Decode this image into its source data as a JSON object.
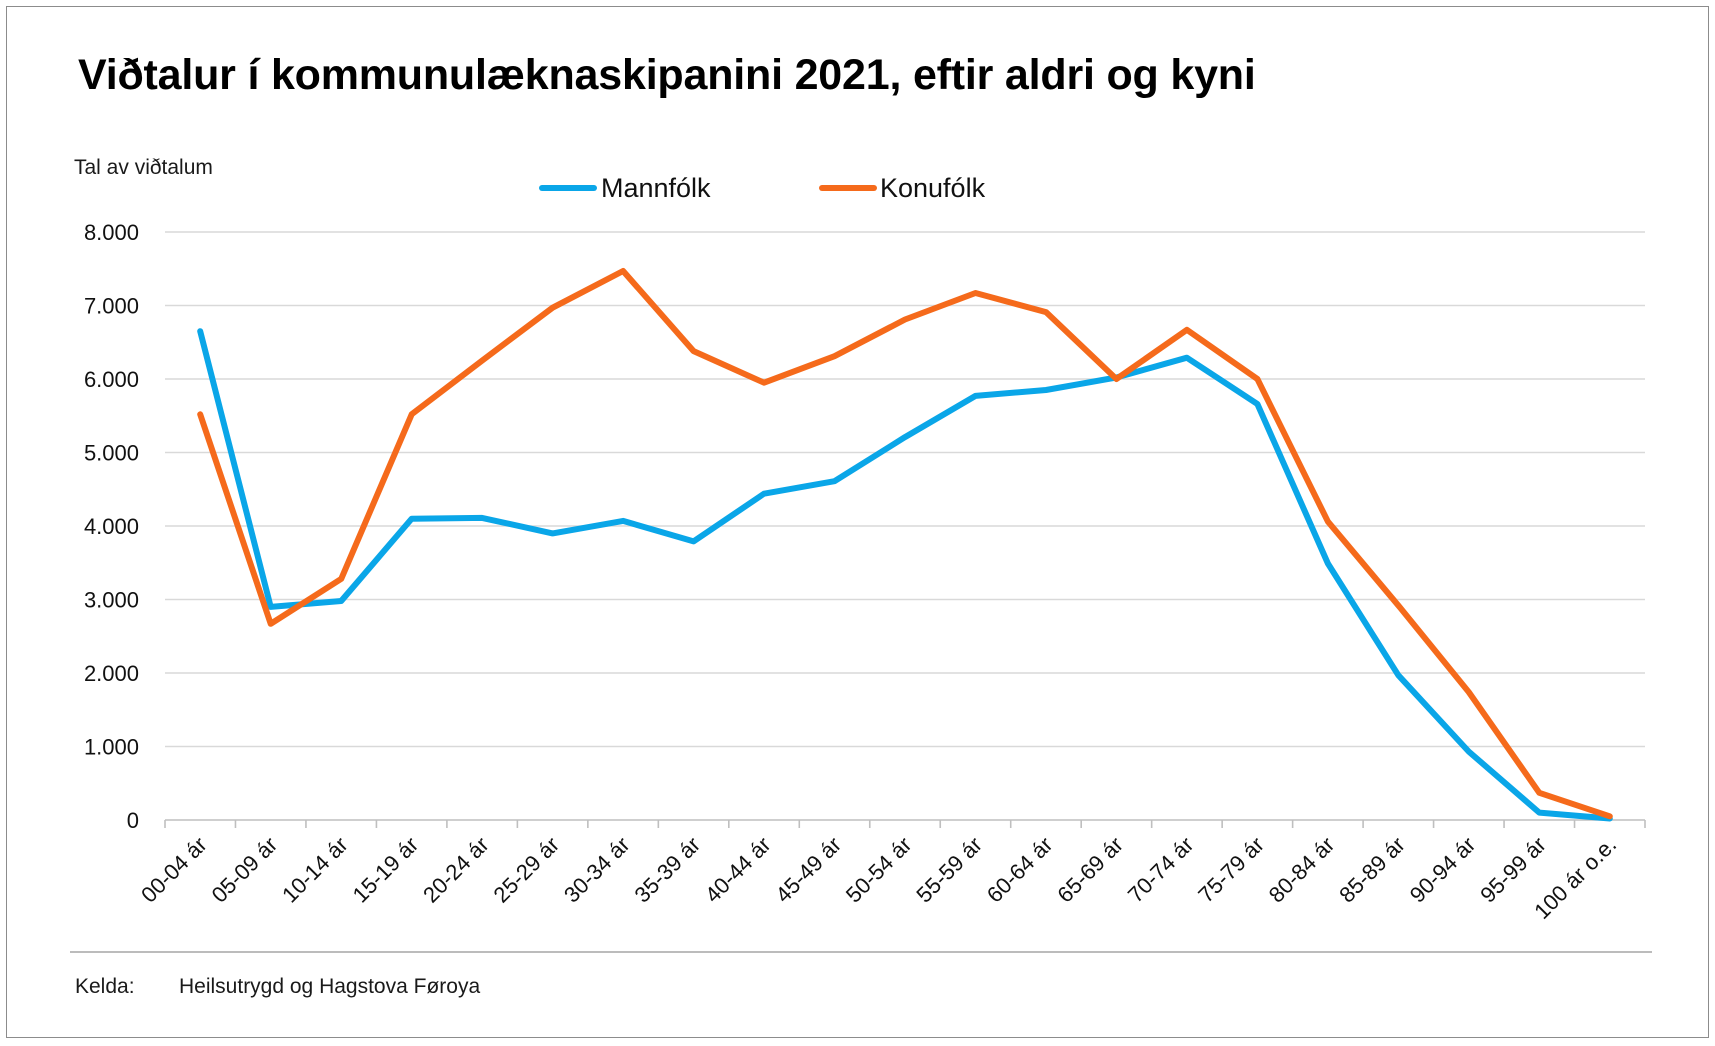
{
  "title": "Viðtalur í kommunulæknaskipanini 2021, eftir aldri og kyni",
  "source": {
    "label": "Kelda:",
    "value": "Heilsutrygd og Hagstova Føroya"
  },
  "colors": {
    "men": "#0aa6e8",
    "women": "#f56a1b",
    "grid": "#d9d9d9",
    "axis": "#bfbfbf"
  },
  "chart_data": {
    "type": "line",
    "title": "Viðtalur í kommunulæknaskipanini 2021, eftir aldri og kyni",
    "xlabel": "",
    "ylabel": "Tal av viðtalum",
    "ylim": [
      0,
      8000
    ],
    "yticks": [
      0,
      1000,
      2000,
      3000,
      4000,
      5000,
      6000,
      7000,
      8000
    ],
    "ytick_labels": [
      "0",
      "1.000",
      "2.000",
      "3.000",
      "4.000",
      "5.000",
      "6.000",
      "7.000",
      "8.000"
    ],
    "grid": true,
    "legend": "top-center",
    "categories": [
      "00-04 ár",
      "05-09 ár",
      "10-14 ár",
      "15-19 ár",
      "20-24 ár",
      "25-29 ár",
      "30-34 ár",
      "35-39 ár",
      "40-44 ár",
      "45-49 ár",
      "50-54 ár",
      "55-59 ár",
      "60-64 ár",
      "65-69 ár",
      "70-74 ár",
      "75-79 ár",
      "80-84 ár",
      "85-89 ár",
      "90-94 ár",
      "95-99 ár",
      "100 ár o.e."
    ],
    "series": [
      {
        "name": "Mannfólk",
        "color": "#0aa6e8",
        "values": [
          6650,
          2900,
          2980,
          4100,
          4110,
          3900,
          4070,
          3790,
          4440,
          4610,
          5210,
          5770,
          5850,
          6020,
          6290,
          5660,
          3490,
          1970,
          930,
          100,
          20
        ]
      },
      {
        "name": "Konufólk",
        "color": "#f56a1b",
        "values": [
          5520,
          2670,
          3280,
          5520,
          6250,
          6970,
          7470,
          6380,
          5950,
          6310,
          6810,
          7170,
          6910,
          6000,
          6670,
          6000,
          4060,
          2920,
          1740,
          370,
          50
        ]
      }
    ]
  }
}
